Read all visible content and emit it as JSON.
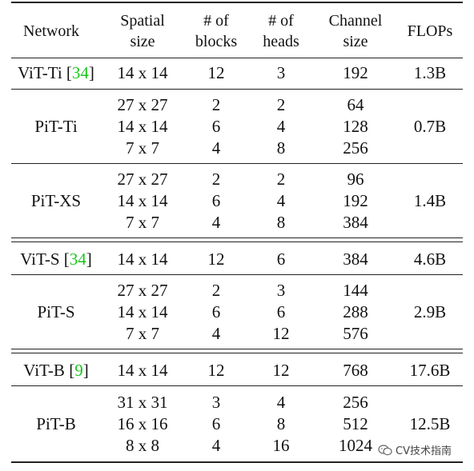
{
  "headers": {
    "network": "Network",
    "spatial_1": "Spatial",
    "spatial_2": "size",
    "blocks_1": "# of",
    "blocks_2": "blocks",
    "heads_1": "# of",
    "heads_2": "heads",
    "channel_1": "Channel",
    "channel_2": "size",
    "flops": "FLOPs"
  },
  "rows": [
    {
      "model": "ViT-Ti",
      "ref": "34",
      "stages": [
        {
          "spatial": "14 x 14",
          "blocks": "12",
          "heads": "3",
          "channel": "192"
        }
      ],
      "flops": "1.3B"
    },
    {
      "model": "PiT-Ti",
      "ref": "",
      "stages": [
        {
          "spatial": "27 x 27",
          "blocks": "2",
          "heads": "2",
          "channel": "64"
        },
        {
          "spatial": "14 x 14",
          "blocks": "6",
          "heads": "4",
          "channel": "128"
        },
        {
          "spatial": "7 x 7",
          "blocks": "4",
          "heads": "8",
          "channel": "256"
        }
      ],
      "flops": "0.7B"
    },
    {
      "model": "PiT-XS",
      "ref": "",
      "stages": [
        {
          "spatial": "27 x 27",
          "blocks": "2",
          "heads": "2",
          "channel": "96"
        },
        {
          "spatial": "14 x 14",
          "blocks": "6",
          "heads": "4",
          "channel": "192"
        },
        {
          "spatial": "7 x 7",
          "blocks": "4",
          "heads": "8",
          "channel": "384"
        }
      ],
      "flops": "1.4B"
    },
    {
      "model": "ViT-S",
      "ref": "34",
      "stages": [
        {
          "spatial": "14 x 14",
          "blocks": "12",
          "heads": "6",
          "channel": "384"
        }
      ],
      "flops": "4.6B"
    },
    {
      "model": "PiT-S",
      "ref": "",
      "stages": [
        {
          "spatial": "27 x 27",
          "blocks": "2",
          "heads": "3",
          "channel": "144"
        },
        {
          "spatial": "14 x 14",
          "blocks": "6",
          "heads": "6",
          "channel": "288"
        },
        {
          "spatial": "7 x 7",
          "blocks": "4",
          "heads": "12",
          "channel": "576"
        }
      ],
      "flops": "2.9B"
    },
    {
      "model": "ViT-B",
      "ref": "9",
      "stages": [
        {
          "spatial": "14 x 14",
          "blocks": "12",
          "heads": "12",
          "channel": "768"
        }
      ],
      "flops": "17.6B"
    },
    {
      "model": "PiT-B",
      "ref": "",
      "stages": [
        {
          "spatial": "31 x 31",
          "blocks": "3",
          "heads": "4",
          "channel": "256"
        },
        {
          "spatial": "16 x 16",
          "blocks": "6",
          "heads": "8",
          "channel": "512"
        },
        {
          "spatial": "8 x 8",
          "blocks": "4",
          "heads": "16",
          "channel": "1024"
        }
      ],
      "flops": "12.5B"
    }
  ],
  "watermark": {
    "text": "CV技术指南",
    "icon": "wechat-icon"
  }
}
